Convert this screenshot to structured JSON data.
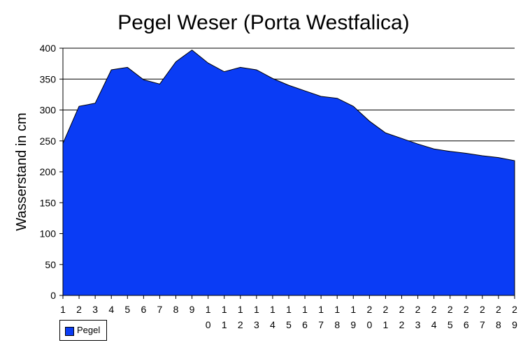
{
  "chart_data": {
    "type": "area",
    "title": "Pegel Weser (Porta Westfalica)",
    "xlabel": "",
    "ylabel": "Wasserstand in cm",
    "ylim": [
      0,
      400
    ],
    "yticks": [
      0,
      50,
      100,
      150,
      200,
      250,
      300,
      350,
      400
    ],
    "grid": true,
    "legend_position": "bottom-left",
    "x": [
      1,
      2,
      3,
      4,
      5,
      6,
      7,
      8,
      9,
      10,
      11,
      12,
      13,
      14,
      15,
      16,
      17,
      18,
      19,
      20,
      21,
      22,
      23,
      24,
      25,
      26,
      27,
      28,
      29
    ],
    "series": [
      {
        "name": "Pegel",
        "color": "#0a3cf5",
        "values": [
          246,
          306,
          311,
          365,
          369,
          349,
          342,
          378,
          397,
          376,
          362,
          369,
          365,
          351,
          340,
          331,
          322,
          319,
          306,
          282,
          263,
          254,
          245,
          237,
          233,
          230,
          226,
          223,
          218
        ]
      }
    ]
  }
}
